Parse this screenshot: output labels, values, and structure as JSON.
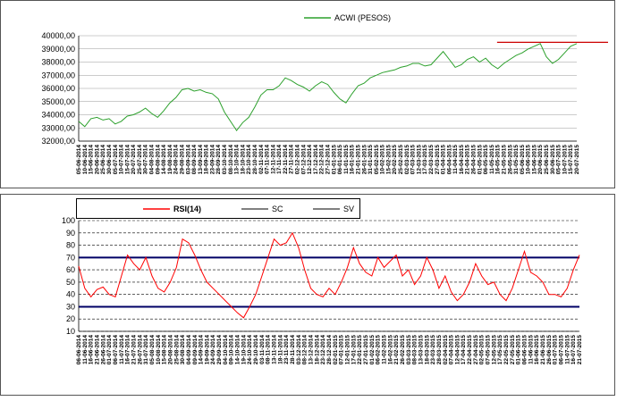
{
  "chart_data": [
    {
      "type": "line",
      "categories": [
        "05-06-2014",
        "10-06-2014",
        "15-06-2014",
        "20-06-2014",
        "25-06-2014",
        "30-06-2014",
        "05-07-2014",
        "10-07-2014",
        "15-07-2014",
        "20-07-2014",
        "25-07-2014",
        "30-07-2014",
        "04-08-2014",
        "09-08-2014",
        "14-08-2014",
        "19-08-2014",
        "24-08-2014",
        "29-08-2014",
        "03-09-2014",
        "08-09-2014",
        "13-09-2014",
        "18-09-2014",
        "23-09-2014",
        "28-09-2014",
        "03-10-2014",
        "08-10-2014",
        "13-10-2014",
        "18-10-2014",
        "23-10-2014",
        "28-10-2014",
        "02-11-2014",
        "07-11-2014",
        "12-11-2014",
        "17-11-2014",
        "22-11-2014",
        "27-11-2014",
        "02-12-2014",
        "07-12-2014",
        "12-12-2014",
        "17-12-2014",
        "22-12-2014",
        "27-12-2014",
        "01-01-2015",
        "06-01-2015",
        "11-01-2015",
        "16-01-2015",
        "21-01-2015",
        "26-01-2015",
        "31-01-2015",
        "05-02-2015",
        "10-02-2015",
        "15-02-2015",
        "20-02-2015",
        "25-02-2015",
        "02-03-2015",
        "07-03-2015",
        "12-03-2015",
        "17-03-2015",
        "22-03-2015",
        "27-03-2015",
        "01-04-2015",
        "06-04-2015",
        "11-04-2015",
        "16-04-2015",
        "21-04-2015",
        "26-04-2015",
        "01-05-2015",
        "06-05-2015",
        "11-05-2015",
        "16-05-2015",
        "21-05-2015",
        "26-05-2015",
        "31-05-2015",
        "05-06-2015",
        "10-06-2015",
        "15-06-2015",
        "20-06-2015",
        "25-06-2015",
        "30-06-2015",
        "05-07-2015",
        "10-07-2015",
        "15-07-2015",
        "20-07-2015"
      ],
      "series": [
        {
          "name": "ACWI (PESOS)",
          "color": "#2ca02c",
          "values": [
            33500,
            33100,
            33700,
            33800,
            33600,
            33700,
            33300,
            33500,
            33900,
            34000,
            34200,
            34500,
            34100,
            33800,
            34300,
            34900,
            35300,
            35900,
            36000,
            35800,
            35900,
            35700,
            35600,
            35200,
            34200,
            33500,
            32800,
            33400,
            33800,
            34600,
            35500,
            35900,
            35900,
            36200,
            36800,
            36600,
            36300,
            36100,
            35800,
            36200,
            36500,
            36300,
            35700,
            35200,
            34900,
            35600,
            36200,
            36400,
            36800,
            37000,
            37200,
            37300,
            37400,
            37600,
            37700,
            37900,
            37900,
            37700,
            37800,
            38300,
            38800,
            38200,
            37600,
            37800,
            38200,
            38400,
            38000,
            38300,
            37800,
            37500,
            37900,
            38200,
            38500,
            38700,
            39000,
            39200,
            39400,
            38400,
            37900,
            38200,
            38700,
            39200,
            39400
          ]
        }
      ],
      "hlines": [
        {
          "value": 39500,
          "color": "#cc0000"
        }
      ],
      "ylim": [
        32000,
        40000
      ],
      "yticks": [
        {
          "value": 32000,
          "label": "32000,00"
        },
        {
          "value": 33000,
          "label": "33000,00"
        },
        {
          "value": 34000,
          "label": "34000,00"
        },
        {
          "value": 35000,
          "label": "35000,00"
        },
        {
          "value": 36000,
          "label": "36000,00"
        },
        {
          "value": 37000,
          "label": "37000,00"
        },
        {
          "value": 38000,
          "label": "38000,00"
        },
        {
          "value": 39000,
          "label": "39000,00"
        },
        {
          "value": 40000,
          "label": "40000,00"
        }
      ],
      "grid": true
    },
    {
      "type": "line",
      "categories": [
        "06-06-2014",
        "11-06-2014",
        "16-06-2014",
        "21-06-2014",
        "26-06-2014",
        "01-07-2014",
        "06-07-2014",
        "11-07-2014",
        "16-07-2014",
        "21-07-2014",
        "26-07-2014",
        "31-07-2014",
        "05-08-2014",
        "10-08-2014",
        "15-08-2014",
        "20-08-2014",
        "25-08-2014",
        "30-08-2014",
        "04-09-2014",
        "09-09-2014",
        "14-09-2014",
        "19-09-2014",
        "24-09-2014",
        "29-09-2014",
        "04-10-2014",
        "09-10-2014",
        "14-10-2014",
        "19-10-2014",
        "24-10-2014",
        "29-10-2014",
        "03-11-2014",
        "08-11-2014",
        "13-11-2014",
        "18-11-2014",
        "23-11-2014",
        "28-11-2014",
        "03-12-2014",
        "08-12-2014",
        "13-12-2014",
        "18-12-2014",
        "23-12-2014",
        "28-12-2014",
        "02-01-2015",
        "07-01-2015",
        "12-01-2015",
        "17-01-2015",
        "22-01-2015",
        "27-01-2015",
        "01-02-2015",
        "06-02-2015",
        "11-02-2015",
        "16-02-2015",
        "21-02-2015",
        "26-02-2015",
        "03-03-2015",
        "08-03-2015",
        "13-03-2015",
        "18-03-2015",
        "23-03-2015",
        "28-03-2015",
        "02-04-2015",
        "07-04-2015",
        "12-04-2015",
        "17-04-2015",
        "22-04-2015",
        "27-04-2015",
        "02-05-2015",
        "07-05-2015",
        "12-05-2015",
        "17-05-2015",
        "22-05-2015",
        "27-05-2015",
        "01-06-2015",
        "06-06-2015",
        "11-06-2015",
        "16-06-2015",
        "21-06-2015",
        "26-06-2015",
        "01-07-2015",
        "06-07-2015",
        "11-07-2015",
        "16-07-2015",
        "21-07-2015"
      ],
      "series": [
        {
          "name": "RSI(14)",
          "color": "#ff0000",
          "values": [
            63,
            45,
            38,
            44,
            46,
            40,
            38,
            55,
            72,
            65,
            60,
            70,
            55,
            45,
            42,
            50,
            62,
            85,
            82,
            72,
            60,
            50,
            45,
            40,
            35,
            30,
            25,
            21,
            30,
            40,
            55,
            70,
            85,
            80,
            82,
            90,
            78,
            60,
            45,
            40,
            38,
            45,
            40,
            50,
            62,
            78,
            65,
            58,
            55,
            70,
            62,
            67,
            72,
            55,
            60,
            48,
            55,
            70,
            60,
            45,
            55,
            42,
            35,
            40,
            50,
            65,
            55,
            48,
            50,
            40,
            35,
            45,
            60,
            75,
            58,
            55,
            50,
            40,
            40,
            38,
            45,
            60,
            72
          ]
        }
      ],
      "reference_lines": [
        {
          "name": "SC",
          "value": 30,
          "color": "#000066"
        },
        {
          "name": "SV",
          "value": 70,
          "color": "#000066"
        }
      ],
      "ylim": [
        10,
        100
      ],
      "yticks": [
        10,
        20,
        30,
        40,
        50,
        60,
        70,
        80,
        90,
        100
      ],
      "grid": true
    }
  ]
}
